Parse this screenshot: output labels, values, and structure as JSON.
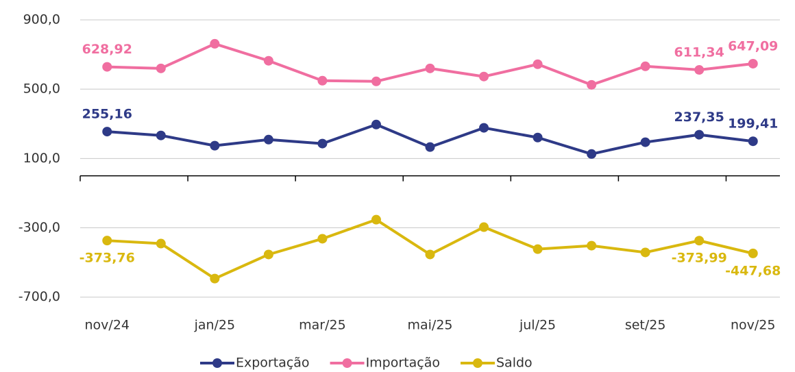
{
  "chart_data": {
    "type": "line",
    "categories": [
      "nov/24",
      null,
      "jan/25",
      null,
      "mar/25",
      null,
      "mai/25",
      null,
      "jul/25",
      null,
      "set/25",
      null,
      "nov/25"
    ],
    "series": [
      {
        "name": "Exportação",
        "color": "#2e3a87",
        "values": [
          255.16,
          233,
          174,
          209,
          186,
          296,
          166,
          277,
          221,
          126,
          194,
          237.35,
          199.41
        ],
        "value_labels": [
          "255,16",
          null,
          null,
          null,
          null,
          null,
          null,
          null,
          null,
          null,
          null,
          "237,35",
          "199,41"
        ]
      },
      {
        "name": "Importação",
        "color": "#f06ea0",
        "values": [
          628.92,
          620,
          762,
          664,
          549,
          545,
          620,
          573,
          644,
          525,
          632,
          611.34,
          647.09
        ],
        "value_labels": [
          "628,92",
          null,
          null,
          null,
          null,
          null,
          null,
          null,
          null,
          null,
          null,
          "611,34",
          "647,09"
        ]
      },
      {
        "name": "Saldo",
        "color": "#d9b80f",
        "values": [
          -373.76,
          -391,
          -593,
          -454,
          -363,
          -253,
          -454,
          -296,
          -423,
          -403,
          -442,
          -373.99,
          -447.68
        ],
        "value_labels": [
          "-373,76",
          null,
          null,
          null,
          null,
          null,
          null,
          null,
          null,
          null,
          null,
          "-373,99",
          "-447,68"
        ]
      }
    ],
    "ylim": [
      -800,
      900
    ],
    "yticks": [
      {
        "value": -700,
        "label": "-700,0"
      },
      {
        "value": -300,
        "label": "-300,0"
      },
      {
        "value": 100,
        "label": "100,0"
      },
      {
        "value": 500,
        "label": "500,0"
      },
      {
        "value": 900,
        "label": "900,0"
      }
    ],
    "grid": true,
    "legend": "bottom"
  }
}
